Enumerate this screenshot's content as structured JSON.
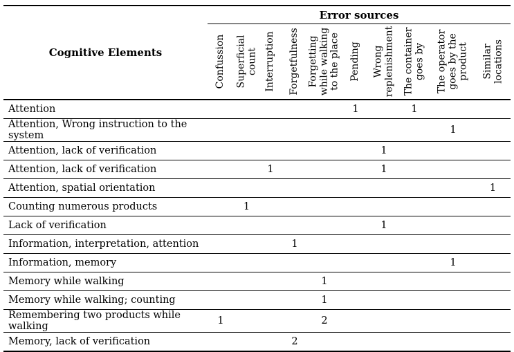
{
  "table": {
    "corner_header": "Cognitive Elements",
    "group_header": "Error sources",
    "columns": [
      "Confussion",
      "Superficial\ncount",
      "Interruption",
      "Forgetfulness",
      "Forgetting\nwhile walking\nto the place",
      "Pending",
      "Wrong\nreplenishment",
      "The container\ngoes by",
      "The operator\ngoes by the\nproduct",
      "Similar\nlocations"
    ],
    "rows": [
      {
        "label": "Attention",
        "values": [
          "",
          "",
          "",
          "",
          "",
          "1",
          "",
          "1",
          "",
          ""
        ]
      },
      {
        "label": "Attention, Wrong instruction to the system",
        "values": [
          "",
          "",
          "",
          "",
          "",
          "",
          "",
          "",
          "1",
          ""
        ]
      },
      {
        "label": "Attention, lack of verification",
        "values": [
          "",
          "",
          "",
          "",
          "",
          "",
          "1",
          "",
          "",
          ""
        ]
      },
      {
        "label": "Attention, lack of verification",
        "values": [
          "",
          "",
          "1",
          "",
          "",
          "",
          "1",
          "",
          "",
          ""
        ]
      },
      {
        "label": "Attention, spatial orientation",
        "values": [
          "",
          "",
          "",
          "",
          "",
          "",
          "",
          "",
          "",
          "1"
        ]
      },
      {
        "label": "Counting numerous products",
        "values": [
          "",
          "1",
          "",
          "",
          "",
          "",
          "",
          "",
          "",
          ""
        ]
      },
      {
        "label": "Lack of verification",
        "values": [
          "",
          "",
          "",
          "",
          "",
          "",
          "1",
          "",
          "",
          ""
        ]
      },
      {
        "label": "Information, interpretation, attention",
        "values": [
          "",
          "",
          "",
          "1",
          "",
          "",
          "",
          "",
          "",
          ""
        ]
      },
      {
        "label": "Information, memory",
        "values": [
          "",
          "",
          "",
          "",
          "",
          "",
          "",
          "",
          "1",
          ""
        ]
      },
      {
        "label": "Memory while walking",
        "values": [
          "",
          "",
          "",
          "",
          "1",
          "",
          "",
          "",
          "",
          ""
        ]
      },
      {
        "label": "Memory while walking; counting",
        "values": [
          "",
          "",
          "",
          "",
          "1",
          "",
          "",
          "",
          "",
          ""
        ]
      },
      {
        "label": "Remembering two products while walking",
        "values": [
          "1",
          "",
          "",
          "",
          "2",
          "",
          "",
          "",
          "",
          ""
        ]
      },
      {
        "label": "Memory, lack of verification",
        "values": [
          "",
          "",
          "",
          "2",
          "",
          "",
          "",
          "",
          "",
          ""
        ]
      }
    ]
  }
}
